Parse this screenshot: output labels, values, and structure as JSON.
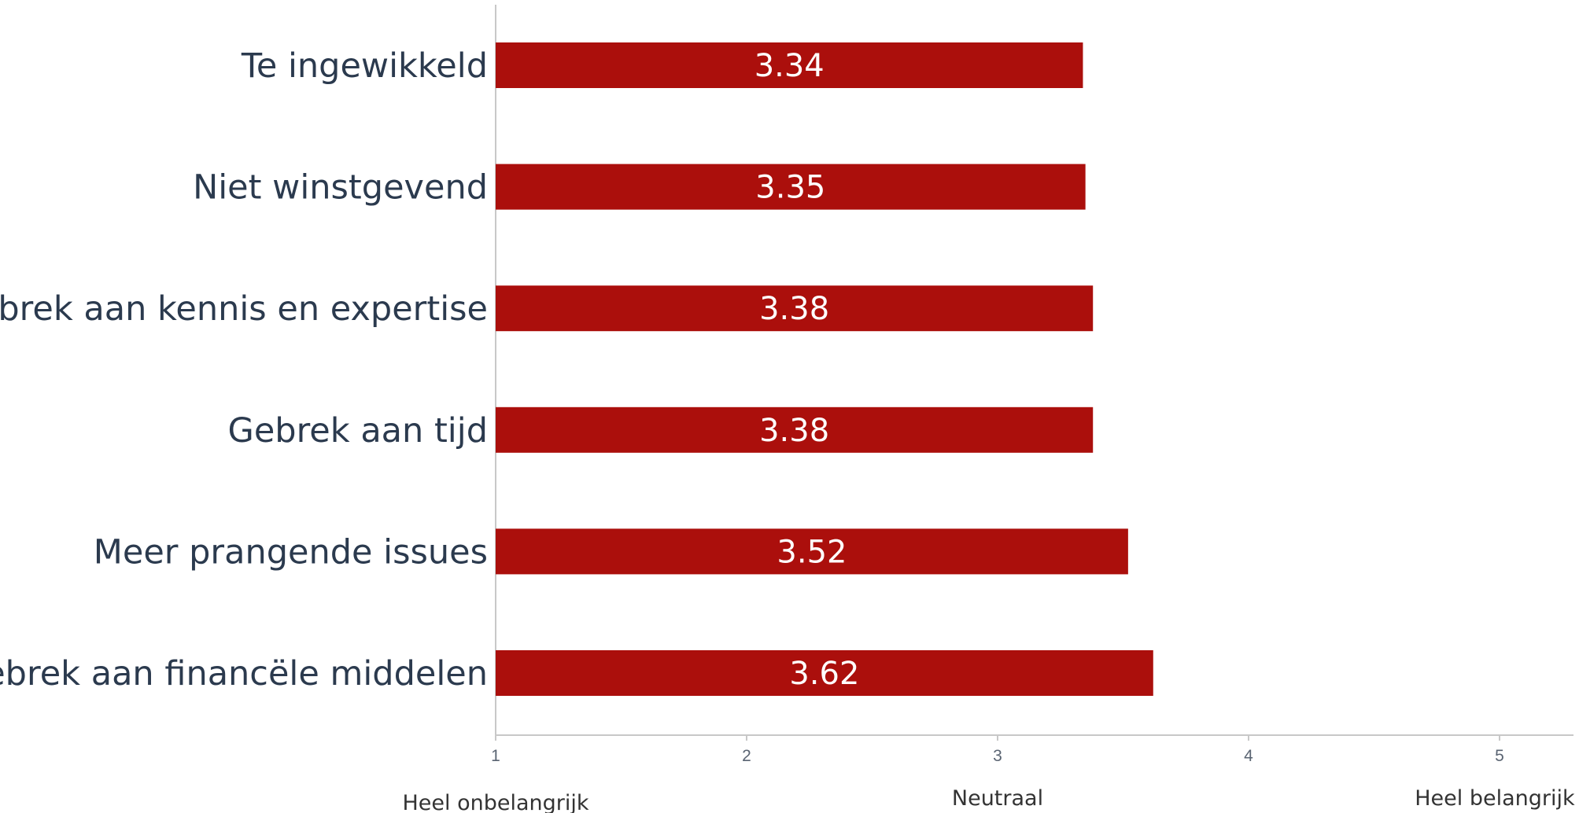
{
  "chart_data": {
    "type": "bar",
    "orientation": "horizontal",
    "categories": [
      "Te ingewikkeld",
      "Niet winstgevend",
      "Gebrek aan kennis en expertise",
      "Gebrek aan tijd",
      "Meer prangende issues",
      "Gebrek aan financële middelen"
    ],
    "values": [
      3.34,
      3.35,
      3.38,
      3.38,
      3.52,
      3.62
    ],
    "data_labels": [
      "3.34",
      "3.35",
      "3.38",
      "3.38",
      "3.52",
      "3.62"
    ],
    "xlim": [
      1,
      5.3
    ],
    "xticks": [
      1,
      2,
      3,
      4,
      5
    ],
    "xtick_labels": [
      "1",
      "2",
      "3",
      "4",
      "5"
    ],
    "axis_anchor_labels": [
      {
        "value": 1,
        "text": "Heel onbelangrijk"
      },
      {
        "value": 3,
        "text": "Neutraal"
      },
      {
        "value": 5,
        "text": "Heel belangrijk"
      }
    ],
    "bar_color": "#ab0f0c",
    "grid": false
  }
}
